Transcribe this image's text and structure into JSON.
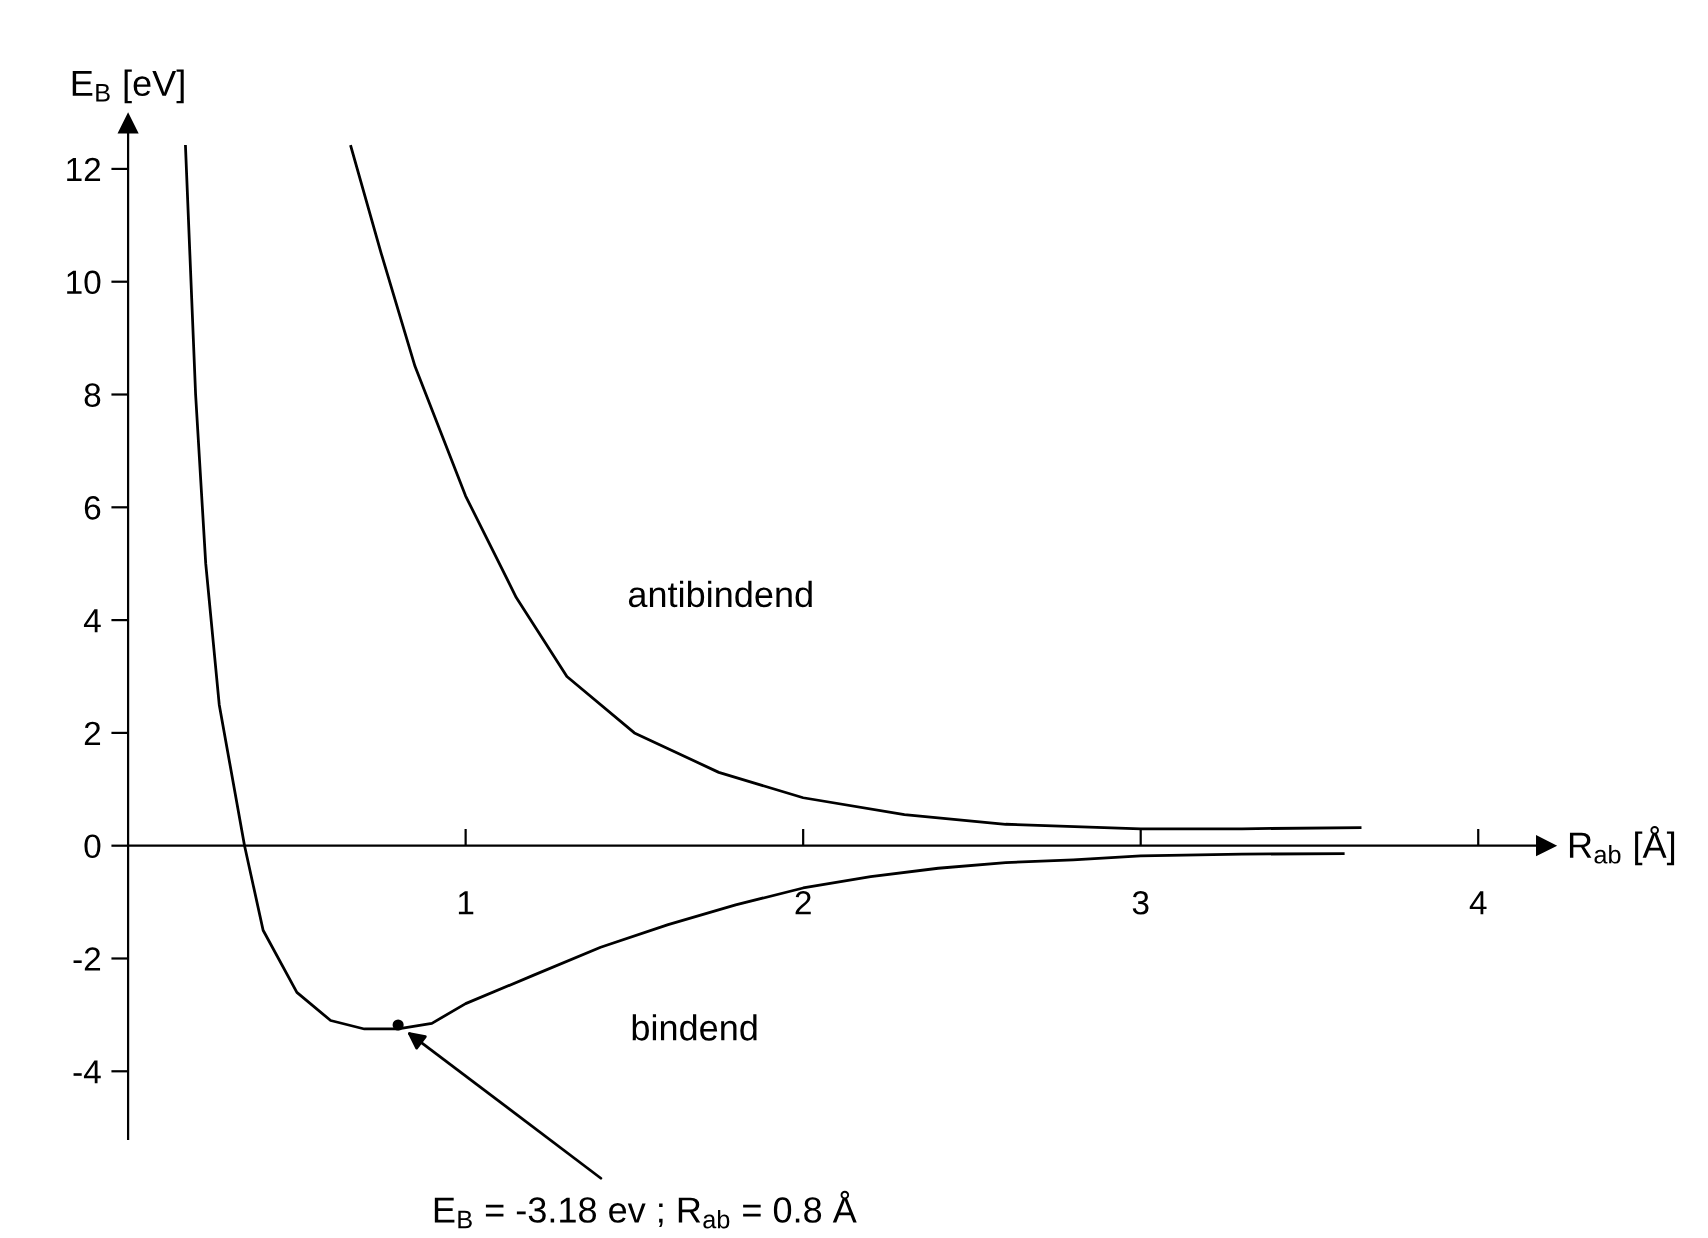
{
  "chart_data": {
    "type": "line",
    "xlabel": "R$_{ab}$ [Å]",
    "ylabel": "E$_{B}$ [eV]",
    "xlim": [
      0,
      4.2
    ],
    "ylim": [
      -5.2,
      12.8
    ],
    "xticks": [
      1,
      2,
      3,
      4
    ],
    "yticks": [
      {
        "value": -4,
        "label": "-4"
      },
      {
        "value": -2,
        "label": "-2"
      },
      0,
      2,
      4,
      6,
      8,
      10,
      12
    ],
    "grid": false,
    "marker": "none",
    "line_style": "solid",
    "series": [
      {
        "name": "antibindend",
        "color": "#000000",
        "x": [
          0.66,
          0.75,
          0.85,
          1.0,
          1.15,
          1.3,
          1.5,
          1.75,
          2.0,
          2.3,
          2.6,
          3.0,
          3.3,
          3.65
        ],
        "values": [
          12.4,
          10.5,
          8.5,
          6.2,
          4.4,
          3.0,
          2.0,
          1.3,
          0.85,
          0.55,
          0.38,
          0.3,
          0.3,
          0.32
        ]
      },
      {
        "name": "bindend",
        "color": "#000000",
        "x": [
          0.17,
          0.2,
          0.23,
          0.27,
          0.345,
          0.4,
          0.5,
          0.6,
          0.7,
          0.8,
          0.9,
          1.0,
          1.2,
          1.4,
          1.6,
          1.8,
          2.0,
          2.2,
          2.4,
          2.6,
          2.8,
          3.0,
          3.3,
          3.6
        ],
        "values": [
          12.4,
          8,
          5,
          2.5,
          0,
          -1.5,
          -2.6,
          -3.1,
          -3.25,
          -3.25,
          -3.15,
          -2.8,
          -2.3,
          -1.8,
          -1.4,
          -1.05,
          -0.75,
          -0.55,
          -0.4,
          -0.3,
          -0.25,
          -0.18,
          -0.15,
          -0.14
        ]
      }
    ],
    "annotations": [
      {
        "text": "E$_{B}$ = -3.18 ev ; R$_{ab}$ = 0.8 Å",
        "x": 0.8,
        "y": -3.18
      }
    ]
  }
}
